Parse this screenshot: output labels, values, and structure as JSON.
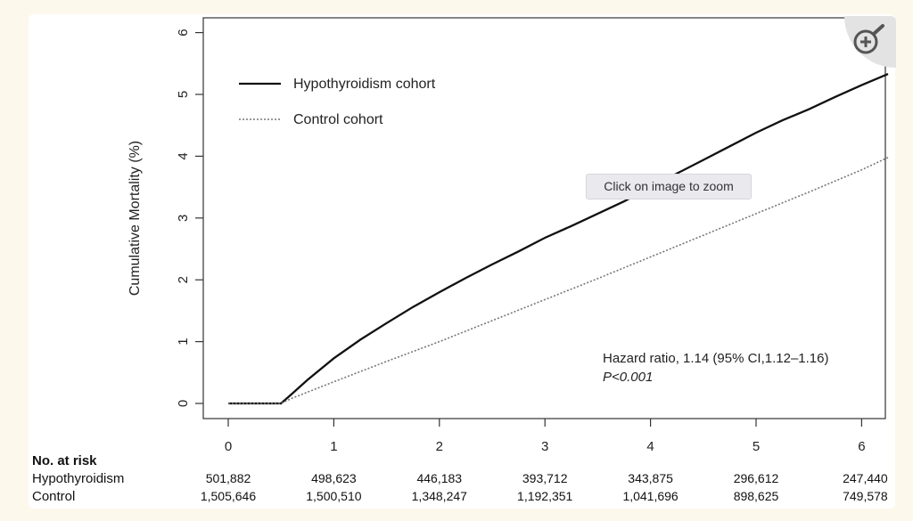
{
  "chart_data": {
    "type": "line",
    "ylabel": "Cumulative Mortality (%)",
    "xlim": [
      0,
      6.25
    ],
    "ylim": [
      0,
      6
    ],
    "x_ticks": [
      "0",
      "1",
      "2",
      "3",
      "4",
      "5",
      "6"
    ],
    "y_ticks": [
      "0",
      "1",
      "2",
      "3",
      "4",
      "5",
      "6"
    ],
    "legend_position": "top-left",
    "series": [
      {
        "name": "Hypothyroidism cohort",
        "style": "solid",
        "color": "#111111",
        "x": [
          0,
          0.5,
          0.6,
          0.75,
          1.0,
          1.25,
          1.5,
          1.75,
          2.0,
          2.25,
          2.5,
          2.75,
          3.0,
          3.25,
          3.5,
          3.75,
          4.0,
          4.25,
          4.5,
          4.75,
          5.0,
          5.25,
          5.5,
          5.75,
          6.0,
          6.25
        ],
        "y": [
          0,
          0,
          0.15,
          0.38,
          0.73,
          1.03,
          1.3,
          1.56,
          1.8,
          2.03,
          2.25,
          2.46,
          2.68,
          2.87,
          3.07,
          3.27,
          3.5,
          3.72,
          3.94,
          4.16,
          4.38,
          4.58,
          4.76,
          4.96,
          5.15,
          5.33
        ]
      },
      {
        "name": "Control cohort",
        "style": "dotted",
        "color": "#777777",
        "x": [
          0,
          0.5,
          0.6,
          1.0,
          1.5,
          2.0,
          2.5,
          3.0,
          3.5,
          4.0,
          4.5,
          5.0,
          5.5,
          6.0,
          6.25
        ],
        "y": [
          0,
          0,
          0.08,
          0.35,
          0.68,
          1.0,
          1.34,
          1.68,
          2.02,
          2.37,
          2.72,
          3.07,
          3.42,
          3.78,
          3.98
        ]
      }
    ],
    "annotations": {
      "hazard_ratio": "Hazard ratio, 1.14  (95% CI,1.12–1.16)",
      "p_value": "P<0.001"
    },
    "risk_table": {
      "title": "No. at risk",
      "rows": [
        {
          "label": "Hypothyroidism",
          "values": [
            "501,882",
            "498,623",
            "446,183",
            "393,712",
            "343,875",
            "296,612",
            "247,440"
          ]
        },
        {
          "label": "Control",
          "values": [
            "1,505,646",
            "1,500,510",
            "1,348,247",
            "1,192,351",
            "1,041,696",
            "898,625",
            "749,578"
          ]
        }
      ]
    }
  },
  "ui": {
    "zoom_tooltip": "Click on image to zoom",
    "zoom_icon": "zoom-in-icon"
  }
}
